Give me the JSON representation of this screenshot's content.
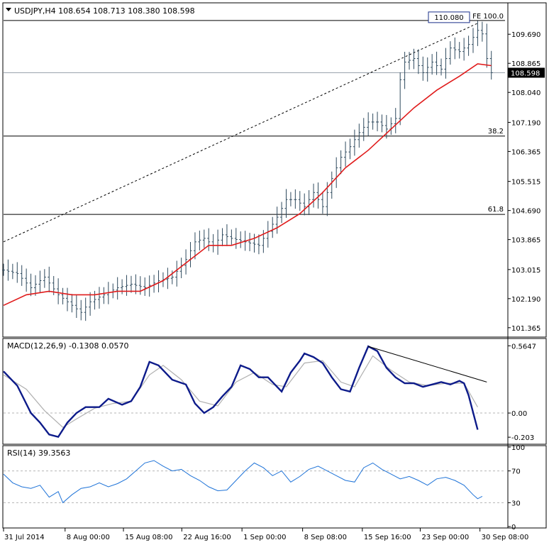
{
  "chart_data": [
    {
      "type": "line",
      "panel": "price",
      "symbol": "USDJPY,H4",
      "ohlc": [
        "108.654",
        "108.713",
        "108.380",
        "108.598"
      ],
      "y_ticks": [
        "109.690",
        "108.865",
        "108.040",
        "107.190",
        "106.365",
        "105.515",
        "104.690",
        "103.865",
        "103.015",
        "102.190",
        "101.365"
      ],
      "y_range": [
        101.2,
        110.5
      ],
      "last_price": "108.598",
      "fib_labels": {
        "top": "100.0",
        "upper": "38.2",
        "lower": "61.8",
        "marker": "FE"
      },
      "fib_levels": [
        110.08,
        106.8,
        104.58
      ],
      "fib_high_box": "110.080",
      "close_path": [
        [
          0,
          103.0
        ],
        [
          3,
          102.9
        ],
        [
          6,
          102.5
        ],
        [
          9,
          102.8
        ],
        [
          12,
          102.3
        ],
        [
          15,
          102.0
        ],
        [
          17,
          101.8
        ],
        [
          19,
          102.1
        ],
        [
          22,
          102.3
        ],
        [
          25,
          102.5
        ],
        [
          28,
          102.6
        ],
        [
          31,
          102.5
        ],
        [
          34,
          102.7
        ],
        [
          37,
          102.8
        ],
        [
          40,
          103.3
        ],
        [
          42,
          103.8
        ],
        [
          44,
          103.9
        ],
        [
          46,
          103.7
        ],
        [
          48,
          104.0
        ],
        [
          50,
          103.9
        ],
        [
          53,
          103.8
        ],
        [
          56,
          103.7
        ],
        [
          58,
          104.1
        ],
        [
          60,
          104.5
        ],
        [
          62,
          105.0
        ],
        [
          64,
          105.0
        ],
        [
          66,
          104.8
        ],
        [
          68,
          105.2
        ],
        [
          70,
          104.8
        ],
        [
          72,
          105.6
        ],
        [
          74,
          106.2
        ],
        [
          76,
          106.5
        ],
        [
          78,
          106.9
        ],
        [
          80,
          107.2
        ],
        [
          82,
          107.2
        ],
        [
          84,
          107.0
        ],
        [
          86,
          107.3
        ],
        [
          87,
          108.4
        ],
        [
          88,
          108.9
        ],
        [
          90,
          109.0
        ],
        [
          92,
          108.6
        ],
        [
          94,
          108.9
        ],
        [
          96,
          108.7
        ],
        [
          98,
          109.3
        ],
        [
          100,
          109.2
        ],
        [
          102,
          109.4
        ],
        [
          104,
          109.8
        ],
        [
          105,
          109.7
        ],
        [
          106,
          109.0
        ],
        [
          107,
          108.6
        ]
      ],
      "ma_path": [
        [
          0,
          102.0
        ],
        [
          5,
          102.3
        ],
        [
          10,
          102.4
        ],
        [
          15,
          102.3
        ],
        [
          20,
          102.3
        ],
        [
          25,
          102.4
        ],
        [
          30,
          102.4
        ],
        [
          35,
          102.7
        ],
        [
          40,
          103.2
        ],
        [
          45,
          103.7
        ],
        [
          50,
          103.7
        ],
        [
          55,
          103.9
        ],
        [
          60,
          104.2
        ],
        [
          65,
          104.6
        ],
        [
          70,
          105.2
        ],
        [
          75,
          105.9
        ],
        [
          80,
          106.4
        ],
        [
          85,
          107.0
        ],
        [
          90,
          107.6
        ],
        [
          95,
          108.1
        ],
        [
          100,
          108.5
        ],
        [
          104,
          108.85
        ],
        [
          107,
          108.8
        ]
      ],
      "trendline": [
        [
          0,
          103.8
        ],
        [
          104,
          110.0
        ]
      ],
      "x_ticks": [
        "31 Jul 2014",
        "8 Aug 00:00",
        "15 Aug 08:00",
        "22 Aug 16:00",
        "1 Sep 00:00",
        "8 Sep 08:00",
        "15 Sep 16:00",
        "23 Sep 00:00",
        "30 Sep 08:00"
      ],
      "x_tick_index": [
        0,
        13.5,
        26.3,
        39.1,
        52.3,
        65.6,
        78.7,
        91.4,
        104.5
      ],
      "x_range": [
        0,
        110
      ],
      "colors": {
        "bars": "#2f4a5e",
        "ma": "#e01b1b",
        "levels": "#000000",
        "trend": "#000000"
      }
    },
    {
      "type": "line",
      "panel": "macd",
      "title": "MACD(12,26,9) -0.1308 0.0570",
      "y_ticks": [
        "0.5647",
        "0.00",
        "-0.203"
      ],
      "y_range": [
        -0.25,
        0.62
      ],
      "series": [
        {
          "values": [
            [
              0,
              0.35
            ],
            [
              3,
              0.23
            ],
            [
              6,
              0.0
            ],
            [
              8,
              -0.08
            ],
            [
              10,
              -0.18
            ],
            [
              12,
              -0.2
            ],
            [
              14,
              -0.08
            ],
            [
              16,
              0.0
            ],
            [
              18,
              0.05
            ],
            [
              21,
              0.05
            ],
            [
              23,
              0.12
            ],
            [
              26,
              0.07
            ],
            [
              28,
              0.1
            ],
            [
              30,
              0.22
            ],
            [
              32,
              0.43
            ],
            [
              34,
              0.4
            ],
            [
              37,
              0.28
            ],
            [
              40,
              0.24
            ],
            [
              42,
              0.08
            ],
            [
              44,
              0.0
            ],
            [
              46,
              0.05
            ],
            [
              48,
              0.14
            ],
            [
              50,
              0.22
            ],
            [
              52,
              0.4
            ],
            [
              54,
              0.37
            ],
            [
              56,
              0.3
            ],
            [
              58,
              0.3
            ],
            [
              60,
              0.22
            ],
            [
              61,
              0.18
            ],
            [
              63,
              0.34
            ],
            [
              65,
              0.44
            ],
            [
              66,
              0.5
            ],
            [
              68,
              0.47
            ],
            [
              70,
              0.42
            ],
            [
              72,
              0.3
            ],
            [
              74,
              0.2
            ],
            [
              76,
              0.18
            ],
            [
              78,
              0.38
            ],
            [
              80,
              0.56
            ],
            [
              82,
              0.52
            ],
            [
              84,
              0.38
            ],
            [
              86,
              0.3
            ],
            [
              88,
              0.25
            ],
            [
              90,
              0.25
            ],
            [
              92,
              0.22
            ],
            [
              94,
              0.24
            ],
            [
              96,
              0.26
            ],
            [
              98,
              0.24
            ],
            [
              100,
              0.27
            ],
            [
              101,
              0.25
            ],
            [
              102,
              0.15
            ],
            [
              104,
              -0.14
            ]
          ],
          "color": "#0d1b8a"
        },
        {
          "values": [
            [
              0,
              0.32
            ],
            [
              5,
              0.2
            ],
            [
              9,
              0.02
            ],
            [
              13,
              -0.12
            ],
            [
              16,
              -0.05
            ],
            [
              20,
              0.04
            ],
            [
              24,
              0.08
            ],
            [
              28,
              0.1
            ],
            [
              32,
              0.32
            ],
            [
              35,
              0.4
            ],
            [
              39,
              0.28
            ],
            [
              43,
              0.1
            ],
            [
              47,
              0.06
            ],
            [
              51,
              0.26
            ],
            [
              55,
              0.34
            ],
            [
              59,
              0.24
            ],
            [
              62,
              0.22
            ],
            [
              66,
              0.42
            ],
            [
              70,
              0.44
            ],
            [
              74,
              0.26
            ],
            [
              77,
              0.22
            ],
            [
              81,
              0.48
            ],
            [
              85,
              0.36
            ],
            [
              89,
              0.26
            ],
            [
              93,
              0.23
            ],
            [
              97,
              0.25
            ],
            [
              101,
              0.25
            ],
            [
              104,
              0.05
            ]
          ],
          "color": "#b0b0b0"
        }
      ],
      "trendline": [
        [
          80,
          0.56
        ],
        [
          106,
          0.26
        ]
      ]
    },
    {
      "type": "line",
      "panel": "rsi",
      "title": "RSI(14) 39.3563",
      "y_ticks": [
        "100",
        "70",
        "30",
        "0"
      ],
      "y_range": [
        0,
        100
      ],
      "levels": [
        70,
        30
      ],
      "series": [
        {
          "values": [
            [
              0,
              66
            ],
            [
              2,
              55
            ],
            [
              4,
              50
            ],
            [
              6,
              48
            ],
            [
              8,
              52
            ],
            [
              10,
              37
            ],
            [
              12,
              44
            ],
            [
              13,
              30
            ],
            [
              15,
              40
            ],
            [
              17,
              48
            ],
            [
              19,
              50
            ],
            [
              21,
              55
            ],
            [
              23,
              50
            ],
            [
              25,
              54
            ],
            [
              27,
              60
            ],
            [
              29,
              70
            ],
            [
              31,
              80
            ],
            [
              33,
              83
            ],
            [
              35,
              76
            ],
            [
              37,
              70
            ],
            [
              39,
              72
            ],
            [
              41,
              64
            ],
            [
              43,
              58
            ],
            [
              45,
              50
            ],
            [
              47,
              45
            ],
            [
              49,
              46
            ],
            [
              51,
              58
            ],
            [
              53,
              70
            ],
            [
              55,
              80
            ],
            [
              57,
              74
            ],
            [
              59,
              64
            ],
            [
              61,
              70
            ],
            [
              63,
              56
            ],
            [
              65,
              63
            ],
            [
              67,
              72
            ],
            [
              69,
              76
            ],
            [
              71,
              70
            ],
            [
              73,
              64
            ],
            [
              75,
              58
            ],
            [
              77,
              56
            ],
            [
              79,
              74
            ],
            [
              81,
              80
            ],
            [
              83,
              72
            ],
            [
              85,
              66
            ],
            [
              87,
              60
            ],
            [
              89,
              63
            ],
            [
              91,
              58
            ],
            [
              93,
              52
            ],
            [
              95,
              60
            ],
            [
              97,
              62
            ],
            [
              99,
              58
            ],
            [
              101,
              52
            ],
            [
              103,
              40
            ],
            [
              104,
              35
            ],
            [
              105,
              38
            ]
          ],
          "color": "#1e73d8"
        }
      ]
    }
  ]
}
